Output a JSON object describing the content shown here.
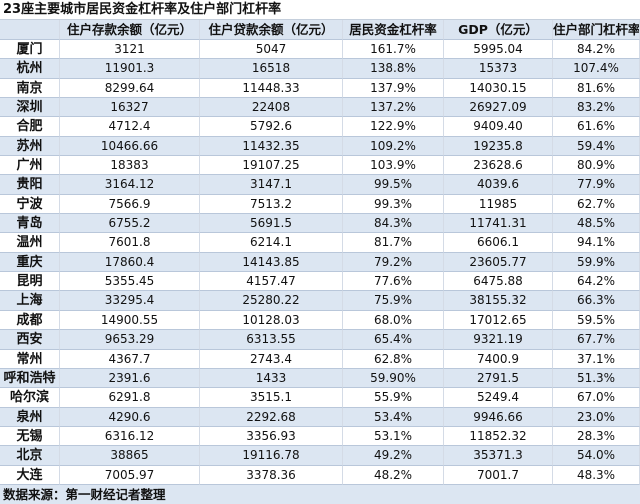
{
  "title": "23座主要城市居民资金杠杆率及住户部门杠杆率",
  "headers": [
    "",
    "住户存款余额（亿元）",
    "住户贷款余额（亿元）",
    "居民资金杠杆率",
    "GDP（亿元）",
    "住户部门杠杆率"
  ],
  "rows": [
    [
      "厦门",
      "3121",
      "5047",
      "161.7%",
      "5995.04",
      "84.2%"
    ],
    [
      "杭州",
      "11901.3",
      "16518",
      "138.8%",
      "15373",
      "107.4%"
    ],
    [
      "南京",
      "8299.64",
      "11448.33",
      "137.9%",
      "14030.15",
      "81.6%"
    ],
    [
      "深圳",
      "16327",
      "22408",
      "137.2%",
      "26927.09",
      "83.2%"
    ],
    [
      "合肥",
      "4712.4",
      "5792.6",
      "122.9%",
      "9409.40",
      "61.6%"
    ],
    [
      "苏州",
      "10466.66",
      "11432.35",
      "109.2%",
      "19235.8",
      "59.4%"
    ],
    [
      "广州",
      "18383",
      "19107.25",
      "103.9%",
      "23628.6",
      "80.9%"
    ],
    [
      "贵阳",
      "3164.12",
      "3147.1",
      "99.5%",
      "4039.6",
      "77.9%"
    ],
    [
      "宁波",
      "7566.9",
      "7513.2",
      "99.3%",
      "11985",
      "62.7%"
    ],
    [
      "青岛",
      "6755.2",
      "5691.5",
      "84.3%",
      "11741.31",
      "48.5%"
    ],
    [
      "温州",
      "7601.8",
      "6214.1",
      "81.7%",
      "6606.1",
      "94.1%"
    ],
    [
      "重庆",
      "17860.4",
      "14143.85",
      "79.2%",
      "23605.77",
      "59.9%"
    ],
    [
      "昆明",
      "5355.45",
      "4157.47",
      "77.6%",
      "6475.88",
      "64.2%"
    ],
    [
      "上海",
      "33295.4",
      "25280.22",
      "75.9%",
      "38155.32",
      "66.3%"
    ],
    [
      "成都",
      "14900.55",
      "10128.03",
      "68.0%",
      "17012.65",
      "59.5%"
    ],
    [
      "西安",
      "9653.29",
      "6313.55",
      "65.4%",
      "9321.19",
      "67.7%"
    ],
    [
      "常州",
      "4367.7",
      "2743.4",
      "62.8%",
      "7400.9",
      "37.1%"
    ],
    [
      "呼和浩特",
      "2391.6",
      "1433",
      "59.90%",
      "2791.5",
      "51.3%"
    ],
    [
      "哈尔滨",
      "6291.8",
      "3515.1",
      "55.9%",
      "5249.4",
      "67.0%"
    ],
    [
      "泉州",
      "4290.6",
      "2292.68",
      "53.4%",
      "9946.66",
      "23.0%"
    ],
    [
      "无锡",
      "6316.12",
      "3356.93",
      "53.1%",
      "11852.32",
      "28.3%"
    ],
    [
      "北京",
      "38865",
      "19116.78",
      "49.2%",
      "35371.3",
      "54.0%"
    ],
    [
      "大连",
      "7005.97",
      "3378.36",
      "48.2%",
      "7001.7",
      "48.3%"
    ]
  ],
  "footer": "数据来源：第一财经记者整理"
}
